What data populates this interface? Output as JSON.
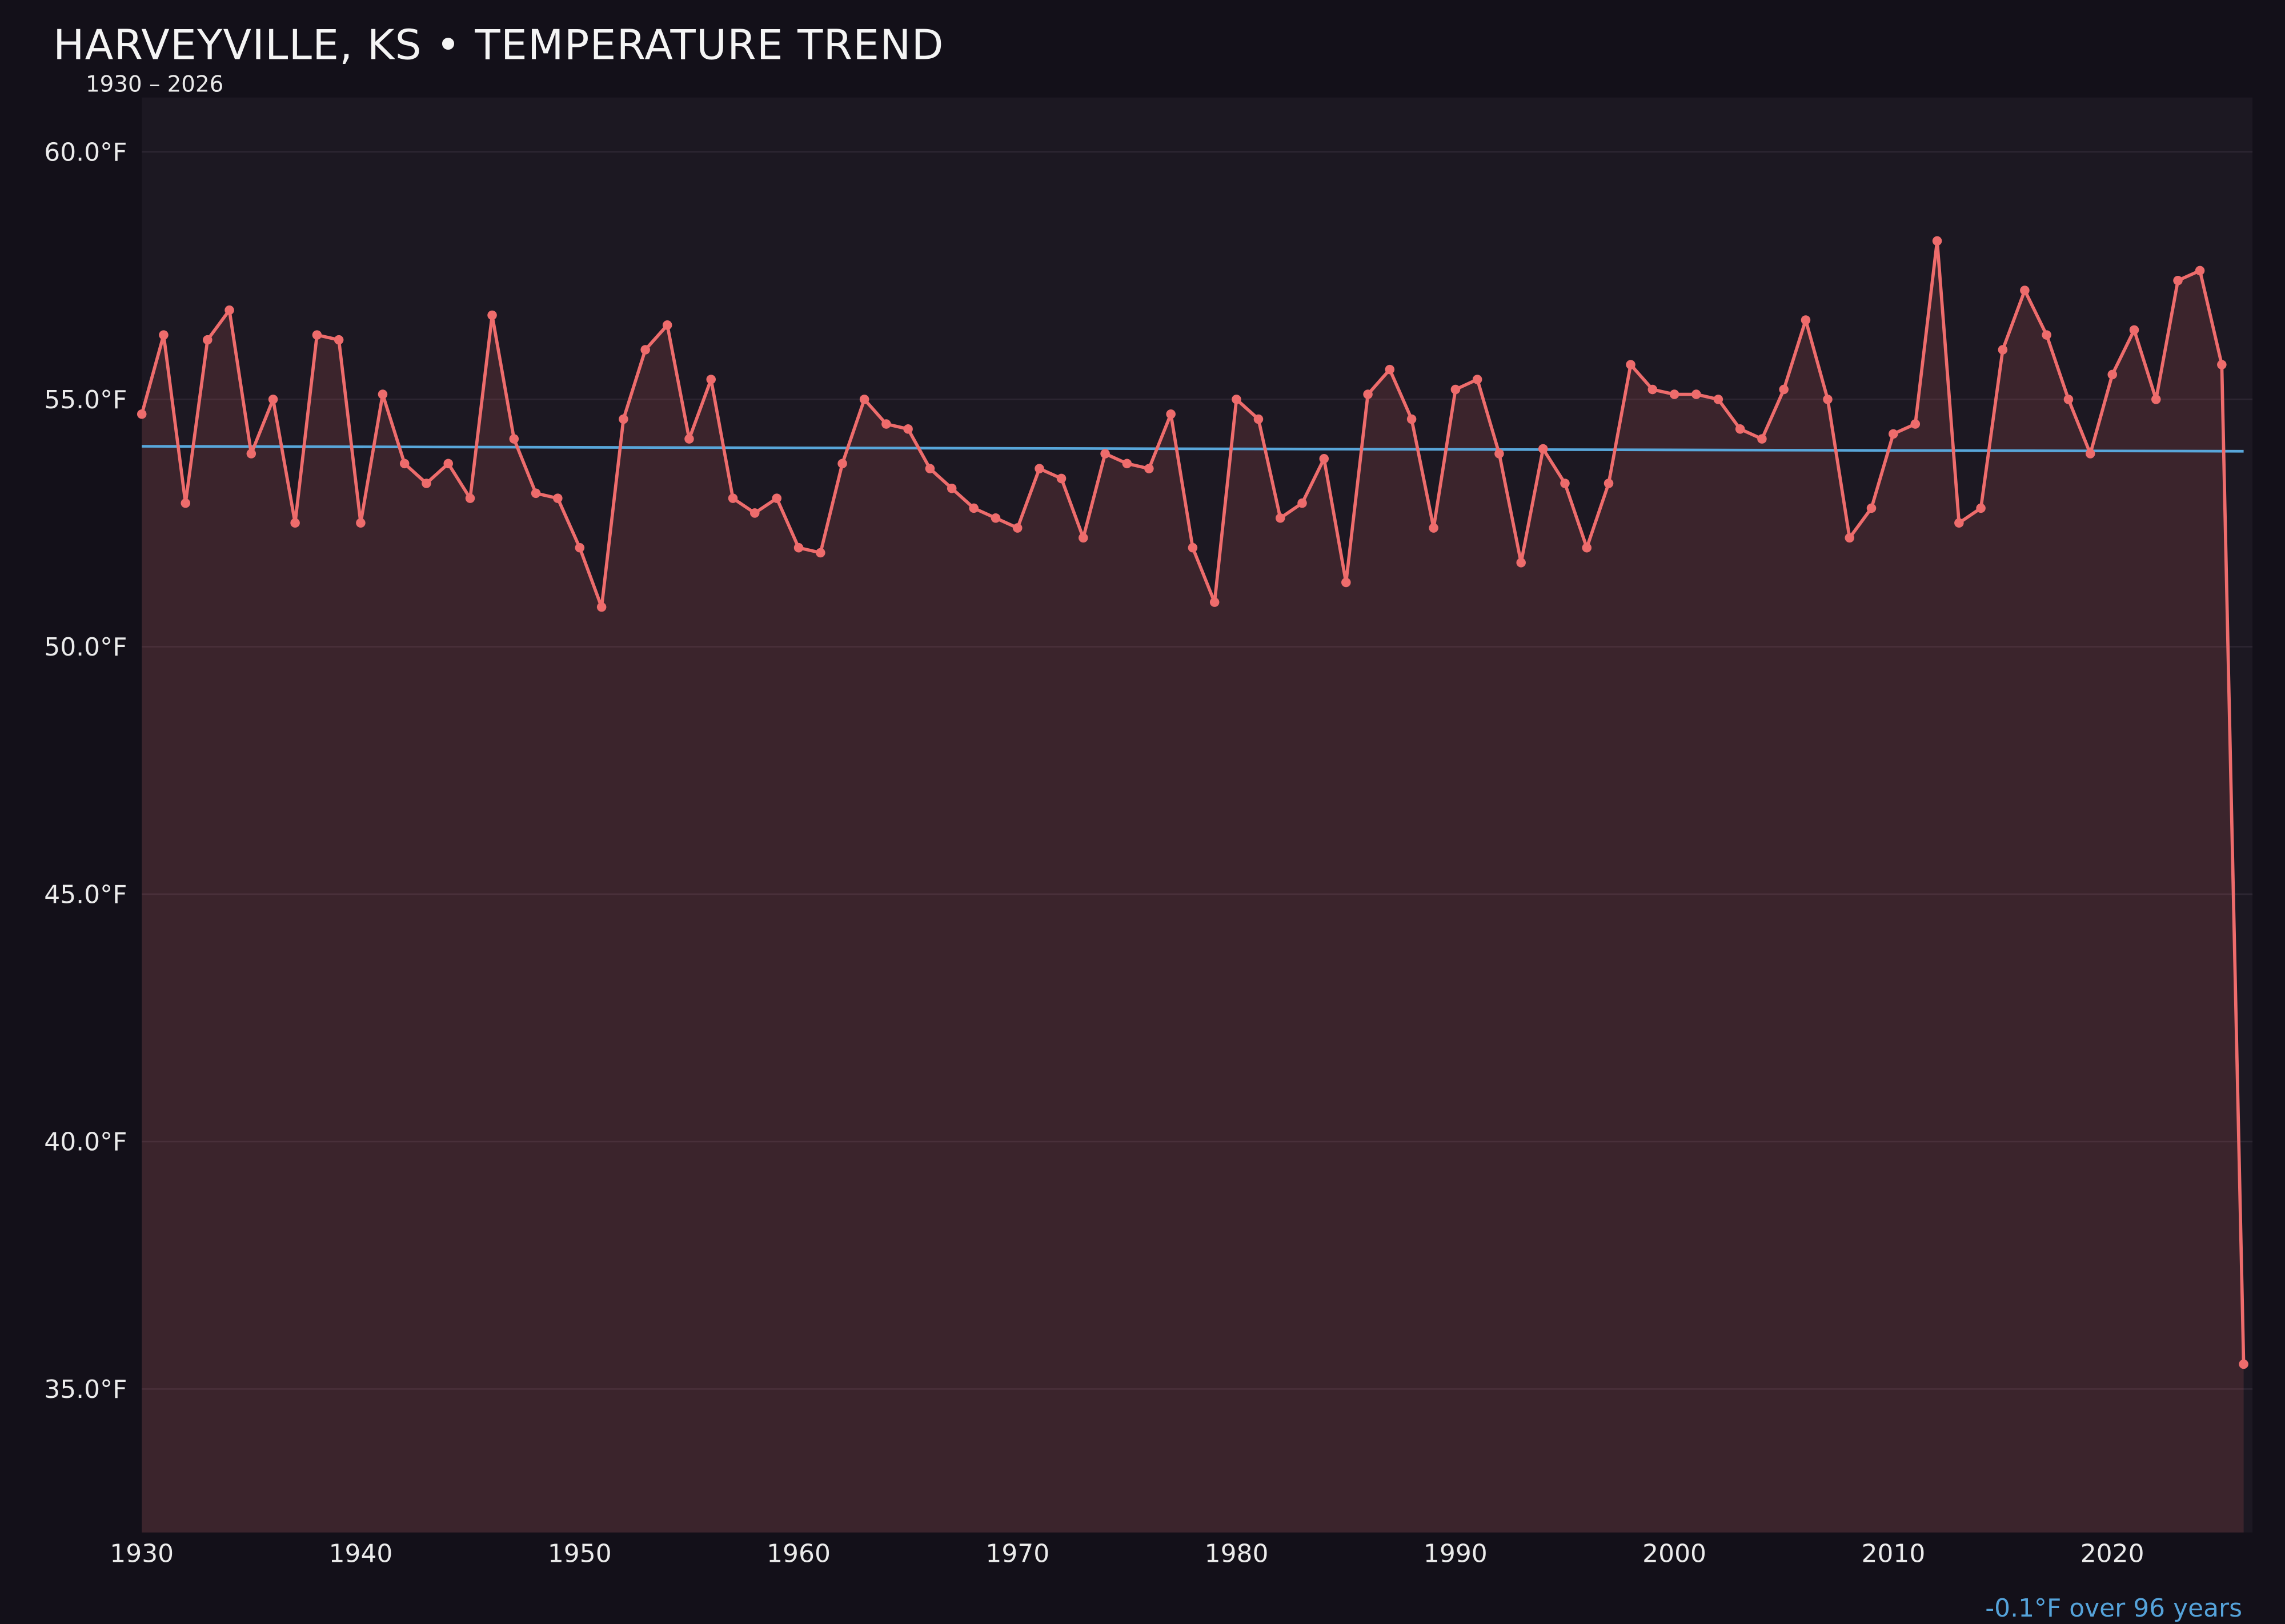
{
  "header": {
    "title": "HARVEYVILLE, KS • TEMPERATURE TREND",
    "subtitle": "1930 – 2026"
  },
  "footer": {
    "trend_label": "-0.1°F over 96 years"
  },
  "colors": {
    "page_bg": "#131019",
    "plot_bg": "#1c1822",
    "grid": "#3a333f",
    "line": "#ee6c6c",
    "marker": "#ee6c6c",
    "area_fill_rgba": "rgba(239,109,109,0.15)",
    "trend": "#58a6da",
    "title_text": "#f4f4f4",
    "tick_text": "#ebebeb"
  },
  "chart_data": {
    "type": "line",
    "title": "HARVEYVILLE, KS • TEMPERATURE TREND",
    "subtitle": "1930 – 2026",
    "xlabel": "",
    "ylabel": "",
    "x_start": 1930,
    "x_end": 2026,
    "x_step": 1,
    "values": [
      54.7,
      56.3,
      52.9,
      56.2,
      56.8,
      53.9,
      55.0,
      52.5,
      56.3,
      56.2,
      52.5,
      55.1,
      53.7,
      53.3,
      53.7,
      53.0,
      56.7,
      54.2,
      53.1,
      53.0,
      52.0,
      50.8,
      54.6,
      56.0,
      56.5,
      54.2,
      55.4,
      53.0,
      52.7,
      53.0,
      52.0,
      51.9,
      53.7,
      55.0,
      54.5,
      54.4,
      53.6,
      53.2,
      52.8,
      52.6,
      52.4,
      53.6,
      53.4,
      52.2,
      53.9,
      53.7,
      53.6,
      54.7,
      52.0,
      50.9,
      55.0,
      54.6,
      52.6,
      52.9,
      53.8,
      51.3,
      55.1,
      55.6,
      54.6,
      52.4,
      55.2,
      55.4,
      53.9,
      51.7,
      54.0,
      53.3,
      52.0,
      53.3,
      55.7,
      55.2,
      55.1,
      55.1,
      55.0,
      54.4,
      54.2,
      55.2,
      56.6,
      55.0,
      52.2,
      52.8,
      54.3,
      54.5,
      58.2,
      52.5,
      52.8,
      56.0,
      57.2,
      56.3,
      55.0,
      53.9,
      55.5,
      56.4,
      55.0,
      57.4,
      57.6,
      55.7,
      35.5
    ],
    "yticks": [
      35,
      40,
      45,
      50,
      55,
      60
    ],
    "ytick_decimals": 1,
    "ytick_suffix": "°F",
    "xticks": [
      1930,
      1940,
      1950,
      1960,
      1970,
      1980,
      1990,
      2000,
      2010,
      2020
    ],
    "ylim": [
      32.1,
      61.1
    ],
    "grid": true,
    "legend": false,
    "marker": "circle",
    "trend_line": {
      "value_start": 54.05,
      "value_end": 53.95,
      "label": "-0.1°F over 96 years"
    }
  }
}
